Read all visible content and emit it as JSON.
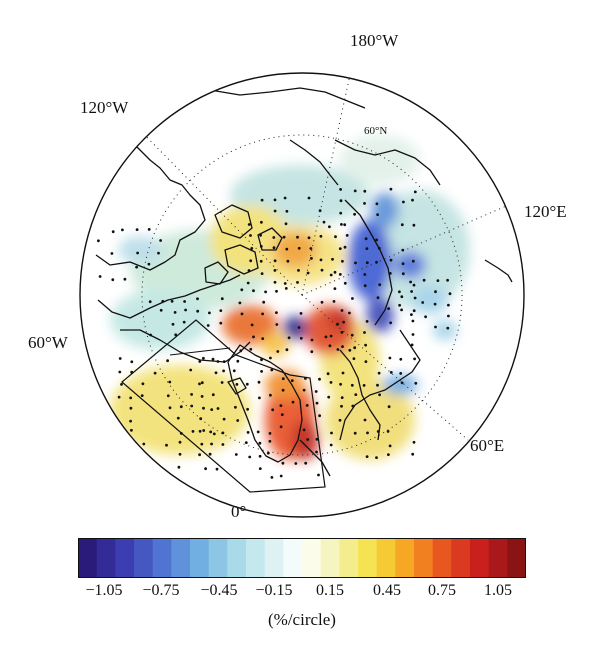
{
  "map": {
    "projection": "north polar stereographic",
    "longitude_labels": [
      "180°W",
      "120°W",
      "120°E",
      "60°W",
      "60°E",
      "0°"
    ],
    "latitude_labels": [
      "60°N"
    ],
    "features": [
      "coastlines",
      "stippling",
      "outlined-box-region"
    ],
    "colormap": [
      "#2a1a7a",
      "#3b3bb0",
      "#4d6fd0",
      "#6aa8e0",
      "#9fd6e8",
      "#d6eef0",
      "#ffffff",
      "#f2f2b0",
      "#f6e040",
      "#f6a020",
      "#e85020",
      "#c81e1e",
      "#8a1414"
    ]
  },
  "colorbar": {
    "ticks": [
      "−1.05",
      "−0.75",
      "−0.45",
      "−0.15",
      "0.15",
      "0.45",
      "0.75",
      "1.05"
    ],
    "units": "(%/circle)"
  }
}
